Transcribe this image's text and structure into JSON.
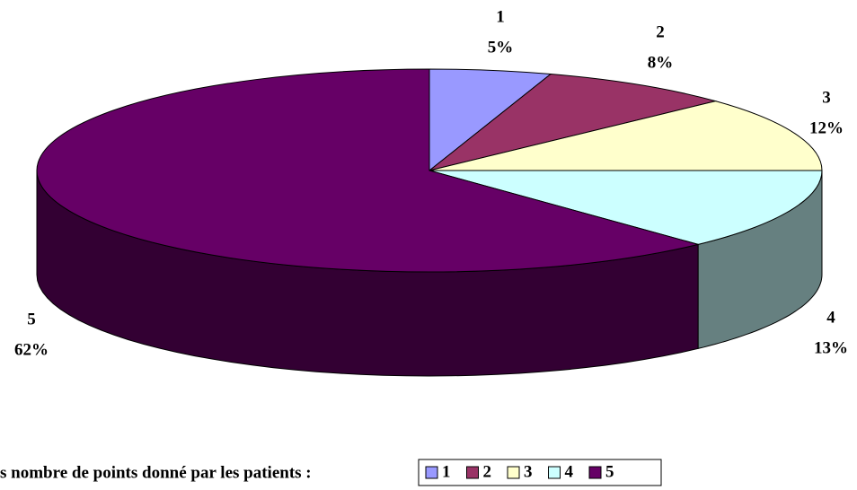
{
  "chart_data": {
    "type": "pie",
    "categories": [
      "1",
      "2",
      "3",
      "4",
      "5"
    ],
    "values": [
      5,
      8,
      12,
      13,
      62
    ],
    "value_labels": [
      "5%",
      "8%",
      "12%",
      "13%",
      "62%"
    ],
    "colors": [
      "#9999ff",
      "#993366",
      "#ffffcc",
      "#ccffff",
      "#660066"
    ],
    "legend_title": "s nombre de points donné par les patients :",
    "legend": "bottom"
  }
}
